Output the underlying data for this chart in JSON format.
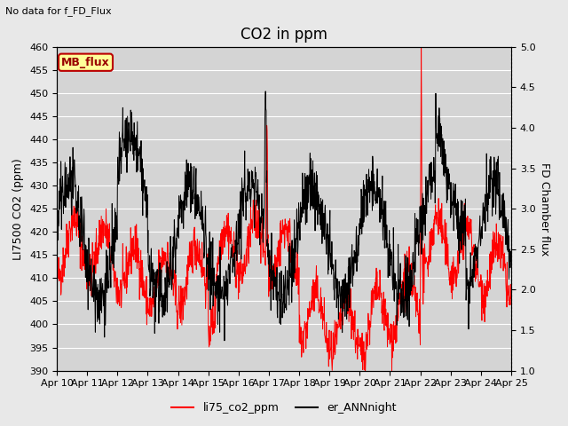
{
  "title": "CO2 in ppm",
  "top_left_note": "No data for f_FD_Flux",
  "legend_box_label": "MB_flux",
  "ylabel_left": "LI7500 CO2 (ppm)",
  "ylabel_right": "FD Chamber flux",
  "ylim_left": [
    390,
    460
  ],
  "ylim_right": [
    1.0,
    5.0
  ],
  "yticks_left": [
    390,
    395,
    400,
    405,
    410,
    415,
    420,
    425,
    430,
    435,
    440,
    445,
    450,
    455,
    460
  ],
  "yticks_right": [
    1.0,
    1.5,
    2.0,
    2.5,
    3.0,
    3.5,
    4.0,
    4.5,
    5.0
  ],
  "xtick_labels": [
    "Apr 10",
    "Apr 11",
    "Apr 12",
    "Apr 13",
    "Apr 14",
    "Apr 15",
    "Apr 16",
    "Apr 17",
    "Apr 18",
    "Apr 19",
    "Apr 20",
    "Apr 21",
    "Apr 22",
    "Apr 23",
    "Apr 24",
    "Apr 25"
  ],
  "line1_color": "#ff0000",
  "line2_color": "#000000",
  "line1_label": "li75_co2_ppm",
  "line2_label": "er_ANNnight",
  "bg_color": "#e8e8e8",
  "plot_bg_color": "#d4d4d4",
  "grid_color": "#ffffff",
  "title_fontsize": 12,
  "label_fontsize": 9,
  "tick_fontsize": 8,
  "note_fontsize": 8,
  "legend_fontsize": 9
}
